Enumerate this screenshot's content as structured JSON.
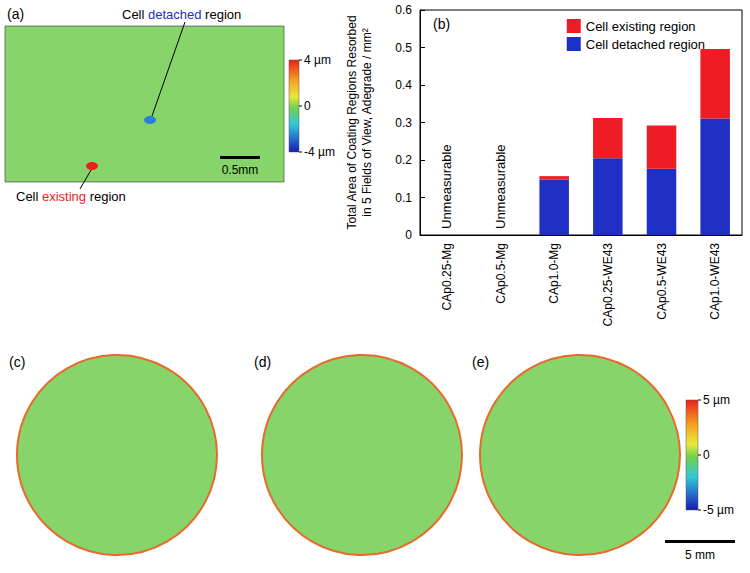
{
  "chart_data": {
    "type": "bar",
    "title": "(b)",
    "stacked": true,
    "categories": [
      "CAp0.25-Mg",
      "CAp0.5-Mg",
      "CAp1.0-Mg",
      "CAp0.25-WE43",
      "CAp0.5-WE43",
      "CAp1.0-WE43"
    ],
    "series": [
      {
        "name": "Cell detached region",
        "color": "#1f2fc4",
        "values": [
          null,
          null,
          0.148,
          0.205,
          0.177,
          0.311
        ]
      },
      {
        "name": "Cell existing region",
        "color": "#ee1c24",
        "values": [
          null,
          null,
          0.009,
          0.107,
          0.115,
          0.185
        ]
      }
    ],
    "ylabel": "Total Area of Coating Regions Resorbed in 5 Fields of View, Adegrade / mm²",
    "ylim": [
      0,
      0.6
    ],
    "yticks": [
      0,
      0.1,
      0.2,
      0.3,
      0.4,
      0.5,
      0.6
    ],
    "grid": false,
    "legend": "upper right",
    "annotations": [
      {
        "text": "Unmeasurable",
        "category": "CAp0.25-Mg"
      },
      {
        "text": "Unmeasurable",
        "category": "CAp0.5-Mg"
      }
    ]
  },
  "panel_a": {
    "label": "(a)",
    "scale_bar": "0.5mm",
    "colorbar": {
      "range": [
        -4,
        4
      ],
      "ticks": [
        {
          "value": 4,
          "label": "4 µm"
        },
        0,
        {
          "value": -4,
          "label": "-4 µm"
        }
      ]
    },
    "annotations": [
      {
        "text": "Cell detached region",
        "highlight": "detached",
        "color": "#1f2fc4"
      },
      {
        "text": "Cell existing region",
        "highlight": "existing",
        "color": "#ee1c24"
      }
    ]
  },
  "bottom_row": {
    "labels": [
      "(c)",
      "(d)",
      "(e)"
    ],
    "scale_bar": "5 mm",
    "colorbar": {
      "range": [
        -5,
        5
      ],
      "ticks": [
        {
          "value": 5,
          "label": "5 µm"
        },
        0,
        {
          "value": -5,
          "label": "-5 µm"
        }
      ]
    }
  }
}
